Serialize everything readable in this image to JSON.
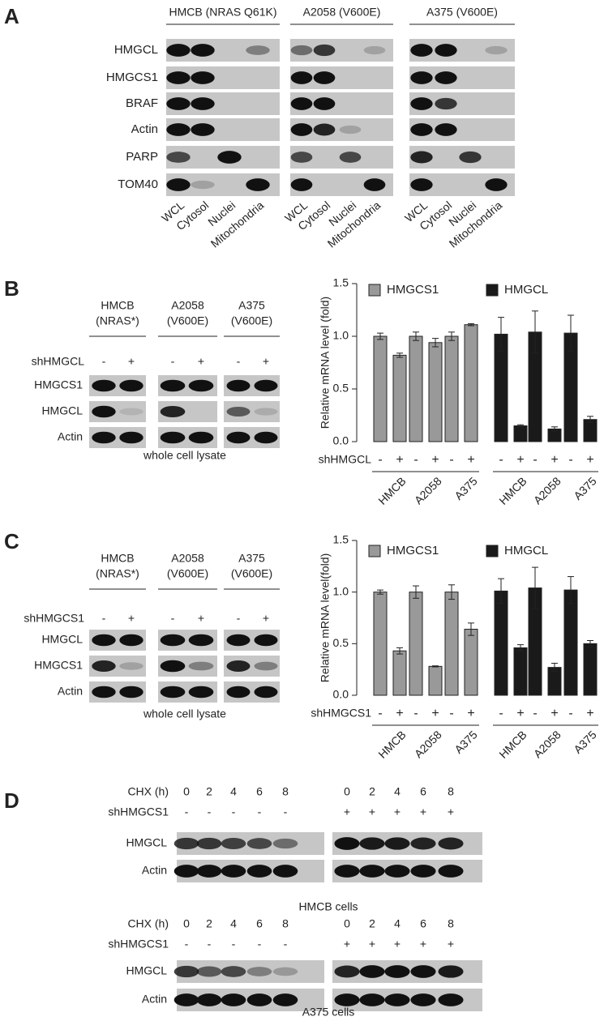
{
  "panel_a": {
    "letter": "A",
    "row_labels": [
      "HMGCL",
      "HMGCS1",
      "BRAF",
      "Actin",
      "PARP",
      "TOM40"
    ],
    "groups": [
      {
        "header": "HMCB (NRAS Q61K)",
        "lanes": [
          "WCL",
          "Cytosol",
          "Nuclei",
          "Mitochondria"
        ]
      },
      {
        "header": "A2058 (V600E)",
        "lanes": [
          "WCL",
          "Cytosol",
          "Nuclei",
          "Mitochondria"
        ]
      },
      {
        "header": "A375 (V600E)",
        "lanes": [
          "WCL",
          "Cytosol",
          "Nuclei",
          "Mitochondria"
        ]
      }
    ]
  },
  "panel_b": {
    "letter": "B",
    "treatment": "shHMGCL",
    "row_labels": [
      "HMGCS1",
      "HMGCL",
      "Actin"
    ],
    "groups": [
      {
        "header": [
          "HMCB",
          "(NRAS*)"
        ],
        "signs": [
          "-",
          "+"
        ]
      },
      {
        "header": [
          "A2058",
          "(V600E)"
        ],
        "signs": [
          "-",
          "+"
        ]
      },
      {
        "header": [
          "A375",
          "(V600E)"
        ],
        "signs": [
          "-",
          "+"
        ]
      }
    ],
    "caption": "whole cell lysate"
  },
  "panel_c": {
    "letter": "C",
    "treatment": "shHMGCS1",
    "row_labels": [
      "HMGCL",
      "HMGCS1",
      "Actin"
    ],
    "groups": [
      {
        "header": [
          "HMCB",
          "(NRAS*)"
        ],
        "signs": [
          "-",
          "+"
        ]
      },
      {
        "header": [
          "A2058",
          "(V600E)"
        ],
        "signs": [
          "-",
          "+"
        ]
      },
      {
        "header": [
          "A375",
          "(V600E)"
        ],
        "signs": [
          "-",
          "+"
        ]
      }
    ],
    "caption": "whole cell lysate"
  },
  "panel_d": {
    "letter": "D",
    "blocks": [
      {
        "time_label": "CHX (h)",
        "treatment": "shHMGCS1",
        "row_labels": [
          "HMGCL",
          "Actin"
        ],
        "caption": "HMCB cells",
        "groups": [
          {
            "times": [
              0,
              2,
              4,
              6,
              8
            ],
            "signs": [
              "-",
              "-",
              "-",
              "-",
              "-"
            ]
          },
          {
            "times": [
              0,
              2,
              4,
              6,
              8
            ],
            "signs": [
              "+",
              "+",
              "+",
              "+",
              "+"
            ]
          }
        ]
      },
      {
        "time_label": "CHX (h)",
        "treatment": "shHMGCS1",
        "row_labels": [
          "HMGCL",
          "Actin"
        ],
        "caption": "A375 cells",
        "groups": [
          {
            "times": [
              0,
              2,
              4,
              6,
              8
            ],
            "signs": [
              "-",
              "-",
              "-",
              "-",
              "-"
            ]
          },
          {
            "times": [
              0,
              2,
              4,
              6,
              8
            ],
            "signs": [
              "+",
              "+",
              "+",
              "+",
              "+"
            ]
          }
        ]
      }
    ]
  },
  "chart_data": [
    {
      "type": "bar",
      "y_label": "Relative mRNA level (fold)",
      "x_label": "shHMGCL",
      "categories": [
        "-",
        "+",
        "-",
        "+",
        "-",
        "+",
        "-",
        "+",
        "-",
        "+",
        "-",
        "+"
      ],
      "groups": [
        "HMCB",
        "A2058",
        "A375",
        "HMCB",
        "A2058",
        "A375"
      ],
      "series": [
        {
          "name": "HMGCS1",
          "color": "#999999",
          "values": [
            1.0,
            0.82,
            1.0,
            0.94,
            1.0,
            1.11,
            null,
            null,
            null,
            null,
            null,
            null
          ],
          "errors": [
            0.03,
            0.02,
            0.04,
            0.04,
            0.04,
            0.01,
            null,
            null,
            null,
            null,
            null,
            null
          ]
        },
        {
          "name": "HMGCL",
          "color": "#1a1a1a",
          "values": [
            null,
            null,
            null,
            null,
            null,
            null,
            1.02,
            0.15,
            1.04,
            0.12,
            1.03,
            0.21
          ],
          "errors": [
            null,
            null,
            null,
            null,
            null,
            null,
            0.16,
            0.01,
            0.2,
            0.02,
            0.17,
            0.03
          ]
        }
      ],
      "ylim": [
        0,
        1.5
      ],
      "yticks": [
        {
          "value": 0,
          "label": "0.0"
        },
        0.5,
        {
          "value": 1,
          "label": "1.0"
        },
        1.5
      ]
    },
    {
      "type": "bar",
      "y_label": "Relative mRNA level(fold)",
      "x_label": "shHMGCS1",
      "categories": [
        "-",
        "+",
        "-",
        "+",
        "-",
        "+",
        "-",
        "+",
        "-",
        "+",
        "-",
        "+"
      ],
      "groups": [
        "HMCB",
        "A2058",
        "A375",
        "HMCB",
        "A2058",
        "A375"
      ],
      "series": [
        {
          "name": "HMGCS1",
          "color": "#999999",
          "values": [
            1.0,
            0.43,
            1.0,
            0.28,
            1.0,
            0.64,
            null,
            null,
            null,
            null,
            null,
            null
          ],
          "errors": [
            0.02,
            0.03,
            0.06,
            0.005,
            0.07,
            0.06,
            null,
            null,
            null,
            null,
            null,
            null
          ]
        },
        {
          "name": "HMGCL",
          "color": "#1a1a1a",
          "values": [
            null,
            null,
            null,
            null,
            null,
            null,
            1.01,
            0.46,
            1.04,
            0.27,
            1.02,
            0.5
          ],
          "errors": [
            null,
            null,
            null,
            null,
            null,
            null,
            0.12,
            0.03,
            0.2,
            0.04,
            0.13,
            0.03
          ]
        }
      ],
      "ylim": [
        0,
        1.5
      ],
      "yticks": [
        {
          "value": 0,
          "label": "0.0"
        },
        0.5,
        {
          "value": 1,
          "label": "1.0"
        },
        1.5
      ]
    }
  ]
}
